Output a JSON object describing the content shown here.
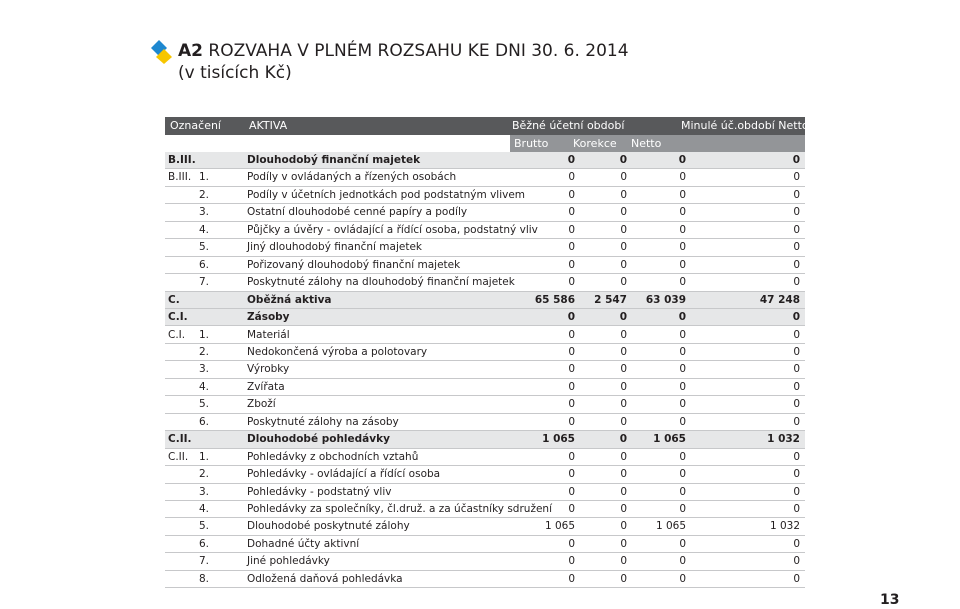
{
  "header": {
    "label": "A2",
    "title": "ROZVAHA V PLNÉM ROZSAHU KE DNI 30. 6. 2014",
    "subtitle": "(v tisících Kč)"
  },
  "table": {
    "head": {
      "code": "Označení",
      "label": "AKTIVA",
      "current": "Běžné účetní období",
      "previous": "Minulé úč.období Netto",
      "sub": [
        "Brutto",
        "Korekce",
        "Netto"
      ]
    },
    "rows": [
      {
        "code": "B.III.",
        "label": "Dlouhodobý finanční majetek",
        "values": [
          "0",
          "0",
          "0",
          "0"
        ]
      },
      {
        "code": "B.III.",
        "num": "1.",
        "label": "Podíly v ovládaných a řízených osobách",
        "values": [
          "0",
          "0",
          "0",
          "0"
        ]
      },
      {
        "num": "2.",
        "label": "Podíly v účetních jednotkách pod podstatným vlivem",
        "values": [
          "0",
          "0",
          "0",
          "0"
        ]
      },
      {
        "num": "3.",
        "label": "Ostatní dlouhodobé cenné papíry a podíly",
        "values": [
          "0",
          "0",
          "0",
          "0"
        ]
      },
      {
        "num": "4.",
        "label": "Půjčky a úvěry - ovládající a řídící osoba, podstatný vliv",
        "values": [
          "0",
          "0",
          "0",
          "0"
        ]
      },
      {
        "num": "5.",
        "label": "Jiný dlouhodobý finanční majetek",
        "values": [
          "0",
          "0",
          "0",
          "0"
        ]
      },
      {
        "num": "6.",
        "label": "Pořizovaný dlouhodobý finanční majetek",
        "values": [
          "0",
          "0",
          "0",
          "0"
        ]
      },
      {
        "num": "7.",
        "label": "Poskytnuté zálohy na dlouhodobý finanční majetek",
        "values": [
          "0",
          "0",
          "0",
          "0"
        ]
      },
      {
        "code": "C.",
        "label": "Oběžná aktiva",
        "values": [
          "65 586",
          "2 547",
          "63 039",
          "47 248"
        ]
      },
      {
        "code": "C.I.",
        "label": "Zásoby",
        "values": [
          "0",
          "0",
          "0",
          "0"
        ]
      },
      {
        "code": "C.I.",
        "num": "1.",
        "label": "Materiál",
        "values": [
          "0",
          "0",
          "0",
          "0"
        ]
      },
      {
        "num": "2.",
        "label": "Nedokončená výroba a polotovary",
        "values": [
          "0",
          "0",
          "0",
          "0"
        ]
      },
      {
        "num": "3.",
        "label": "Výrobky",
        "values": [
          "0",
          "0",
          "0",
          "0"
        ]
      },
      {
        "num": "4.",
        "label": "Zvířata",
        "values": [
          "0",
          "0",
          "0",
          "0"
        ]
      },
      {
        "num": "5.",
        "label": "Zboží",
        "values": [
          "0",
          "0",
          "0",
          "0"
        ]
      },
      {
        "num": "6.",
        "label": "Poskytnuté zálohy na zásoby",
        "values": [
          "0",
          "0",
          "0",
          "0"
        ]
      },
      {
        "code": "C.II.",
        "label": "Dlouhodobé pohledávky",
        "values": [
          "1 065",
          "0",
          "1 065",
          "1 032"
        ]
      },
      {
        "code": "C.II.",
        "num": "1.",
        "label": "Pohledávky z obchodních vztahů",
        "values": [
          "0",
          "0",
          "0",
          "0"
        ]
      },
      {
        "num": "2.",
        "label": "Pohledávky - ovládající a řídící osoba",
        "values": [
          "0",
          "0",
          "0",
          "0"
        ]
      },
      {
        "num": "3.",
        "label": "Pohledávky - podstatný vliv",
        "values": [
          "0",
          "0",
          "0",
          "0"
        ]
      },
      {
        "num": "4.",
        "label": "Pohledávky za společníky, čl.druž. a za účastníky sdružení",
        "values": [
          "0",
          "0",
          "0",
          "0"
        ]
      },
      {
        "num": "5.",
        "label": "Dlouhodobé poskytnuté zálohy",
        "values": [
          "1 065",
          "0",
          "1 065",
          "1 032"
        ]
      },
      {
        "num": "6.",
        "label": "Dohadné účty aktivní",
        "values": [
          "0",
          "0",
          "0",
          "0"
        ]
      },
      {
        "num": "7.",
        "label": "Jiné pohledávky",
        "values": [
          "0",
          "0",
          "0",
          "0"
        ]
      },
      {
        "num": "8.",
        "label": "Odložená daňová pohledávka",
        "values": [
          "0",
          "0",
          "0",
          "0"
        ]
      }
    ]
  },
  "page_number": "13"
}
